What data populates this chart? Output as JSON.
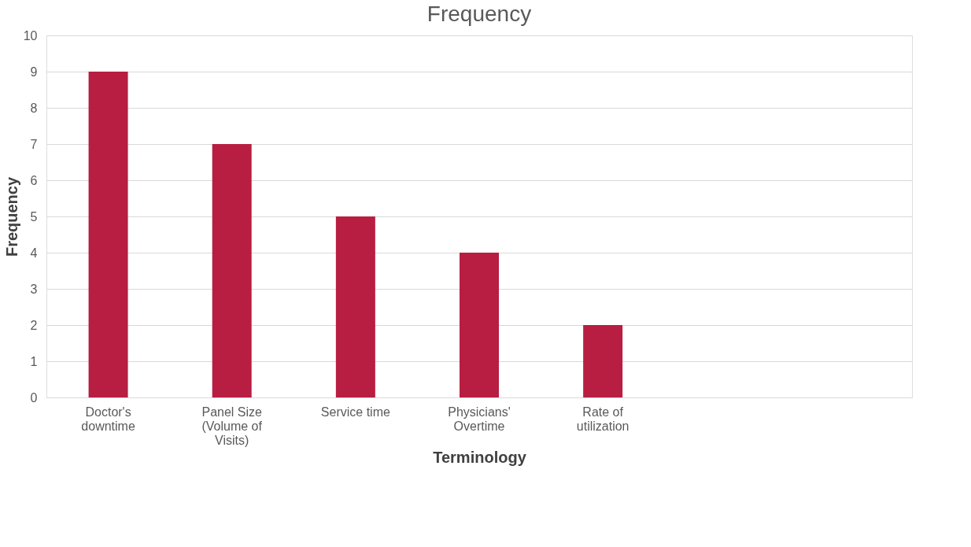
{
  "chart_data": {
    "type": "bar",
    "title": "Frequency",
    "xlabel": "Terminology",
    "ylabel": "Frequency",
    "categories": [
      "Doctor's downtime",
      "Panel Size (Volume of Visits)",
      "Service time",
      "Physicians' Overtime",
      "Rate of utilization",
      null,
      null
    ],
    "series": [
      {
        "color": "#b81e42",
        "values": [
          9,
          7,
          5,
          4,
          2,
          null,
          null
        ]
      }
    ],
    "ylim": [
      0,
      10
    ],
    "yticks": [
      0,
      1,
      2,
      3,
      4,
      5,
      6,
      7,
      8,
      9,
      10
    ],
    "grid": "y"
  }
}
